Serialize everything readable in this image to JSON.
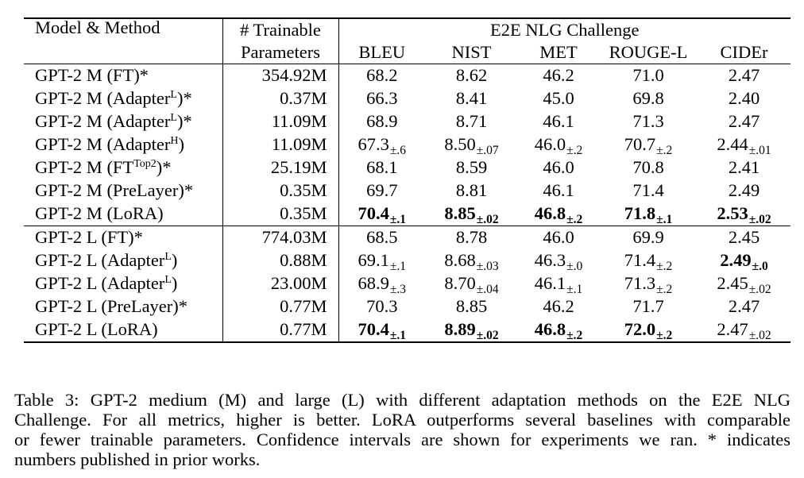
{
  "table": {
    "header": {
      "model_method": "Model & Method",
      "trainable_params_line1": "# Trainable",
      "trainable_params_line2": "Parameters",
      "group_title": "E2E NLG Challenge",
      "metrics": [
        "BLEU",
        "NIST",
        "MET",
        "ROUGE-L",
        "CIDEr"
      ]
    },
    "groups": [
      {
        "rows": [
          {
            "model": "GPT-2 M (FT)*",
            "params": "354.92M",
            "cells": [
              {
                "v": "68.2"
              },
              {
                "v": "8.62"
              },
              {
                "v": "46.2"
              },
              {
                "v": "71.0"
              },
              {
                "v": "2.47"
              }
            ]
          },
          {
            "model_pre": "GPT-2 M (Adapter",
            "model_sup": "L",
            "model_post": ")*",
            "params": "0.37M",
            "cells": [
              {
                "v": "66.3"
              },
              {
                "v": "8.41"
              },
              {
                "v": "45.0"
              },
              {
                "v": "69.8"
              },
              {
                "v": "2.40"
              }
            ]
          },
          {
            "model_pre": "GPT-2 M (Adapter",
            "model_sup": "L",
            "model_post": ")*",
            "params": "11.09M",
            "cells": [
              {
                "v": "68.9"
              },
              {
                "v": "8.71"
              },
              {
                "v": "46.1"
              },
              {
                "v": "71.3"
              },
              {
                "v": "2.47"
              }
            ]
          },
          {
            "model_pre": "GPT-2 M (Adapter",
            "model_sup": "H",
            "model_post": ")",
            "params": "11.09M",
            "cells": [
              {
                "v": "67.3",
                "pm": "±.6"
              },
              {
                "v": "8.50",
                "pm": "±.07"
              },
              {
                "v": "46.0",
                "pm": "±.2"
              },
              {
                "v": "70.7",
                "pm": "±.2"
              },
              {
                "v": "2.44",
                "pm": "±.01"
              }
            ]
          },
          {
            "model_pre": "GPT-2 M (FT",
            "model_sup": "Top2",
            "model_post": ")*",
            "params": "25.19M",
            "cells": [
              {
                "v": "68.1"
              },
              {
                "v": "8.59"
              },
              {
                "v": "46.0"
              },
              {
                "v": "70.8"
              },
              {
                "v": "2.41"
              }
            ]
          },
          {
            "model": "GPT-2 M (PreLayer)*",
            "params": "0.35M",
            "cells": [
              {
                "v": "69.7"
              },
              {
                "v": "8.81"
              },
              {
                "v": "46.1"
              },
              {
                "v": "71.4"
              },
              {
                "v": "2.49"
              }
            ]
          },
          {
            "model": "GPT-2 M (LoRA)",
            "params": "0.35M",
            "cells": [
              {
                "v": "70.4",
                "pm": "±.1",
                "bold": true
              },
              {
                "v": "8.85",
                "pm": "±.02",
                "bold": true
              },
              {
                "v": "46.8",
                "pm": "±.2",
                "bold": true
              },
              {
                "v": "71.8",
                "pm": "±.1",
                "bold": true
              },
              {
                "v": "2.53",
                "pm": "±.02",
                "bold": true
              }
            ]
          }
        ]
      },
      {
        "rows": [
          {
            "model": "GPT-2 L (FT)*",
            "params": "774.03M",
            "cells": [
              {
                "v": "68.5"
              },
              {
                "v": "8.78"
              },
              {
                "v": "46.0"
              },
              {
                "v": "69.9"
              },
              {
                "v": "2.45"
              }
            ]
          },
          {
            "model_pre": "GPT-2 L (Adapter",
            "model_sup": "L",
            "model_post": ")",
            "params": "0.88M",
            "cells": [
              {
                "v": "69.1",
                "pm": "±.1"
              },
              {
                "v": "8.68",
                "pm": "±.03"
              },
              {
                "v": "46.3",
                "pm": "±.0"
              },
              {
                "v": "71.4",
                "pm": "±.2"
              },
              {
                "v": "2.49",
                "pm": "±.0",
                "bold": true
              }
            ]
          },
          {
            "model_pre": "GPT-2 L (Adapter",
            "model_sup": "L",
            "model_post": ")",
            "params": "23.00M",
            "cells": [
              {
                "v": "68.9",
                "pm": "±.3"
              },
              {
                "v": "8.70",
                "pm": "±.04"
              },
              {
                "v": "46.1",
                "pm": "±.1"
              },
              {
                "v": "71.3",
                "pm": "±.2"
              },
              {
                "v": "2.45",
                "pm": "±.02"
              }
            ]
          },
          {
            "model": "GPT-2 L (PreLayer)*",
            "params": "0.77M",
            "cells": [
              {
                "v": "70.3"
              },
              {
                "v": "8.85"
              },
              {
                "v": "46.2"
              },
              {
                "v": "71.7"
              },
              {
                "v": "2.47"
              }
            ]
          },
          {
            "model": "GPT-2 L (LoRA)",
            "params": "0.77M",
            "cells": [
              {
                "v": "70.4",
                "pm": "±.1",
                "bold": true
              },
              {
                "v": "8.89",
                "pm": "±.02",
                "bold": true
              },
              {
                "v": "46.8",
                "pm": "±.2",
                "bold": true
              },
              {
                "v": "72.0",
                "pm": "±.2",
                "bold": true
              },
              {
                "v": "2.47",
                "pm": "±.02"
              }
            ]
          }
        ]
      }
    ]
  },
  "caption": {
    "lines": [
      "Table 3: GPT-2 medium (M) and large (L) with different adaptation methods on the E2E NLG",
      "Challenge. For all metrics, higher is better. LoRA outperforms several baselines with comparable",
      "or fewer trainable parameters. Confidence intervals are shown for experiments we ran. * indicates",
      "numbers published in prior works."
    ]
  }
}
